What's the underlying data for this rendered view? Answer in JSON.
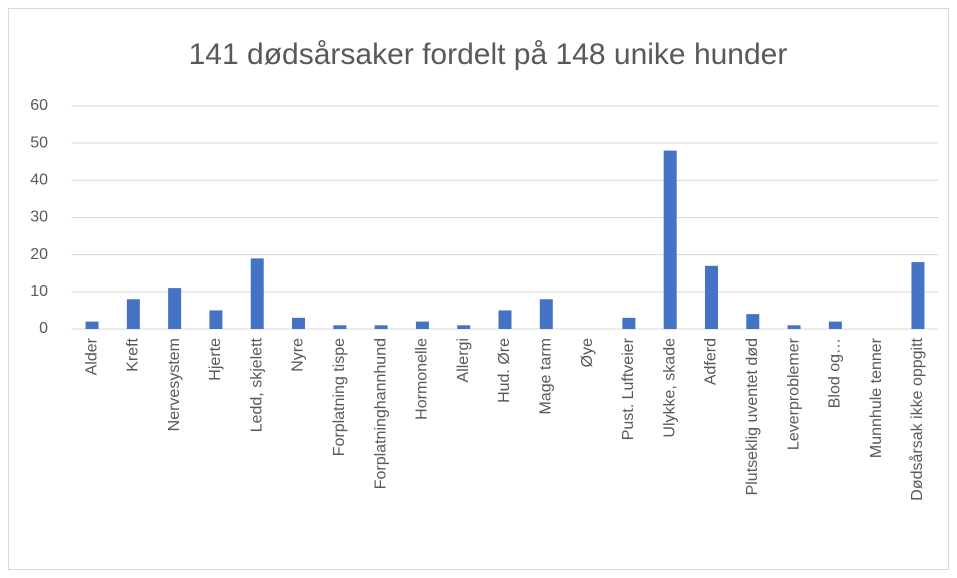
{
  "chart_data": {
    "type": "bar",
    "title": "141 dødsårsaker fordelt på 148 unike hunder",
    "categories": [
      "Alder",
      "Kreft",
      "Nervesystem",
      "Hjerte",
      "Ledd, skjelett",
      "Nyre",
      "Forplatning tispe",
      "Forplatninghannhund",
      "Hormonelle",
      "Allergi",
      "Hud. Øre",
      "Mage tarm",
      "Øye",
      "Pust. Luftveier",
      "Ulykke, skade",
      "Adferd",
      "Plutseklig uventet død",
      "Leverproblemer",
      "Blod og…",
      "Munnhule tenner",
      "Dødsårsak ikke oppgitt"
    ],
    "values": [
      2,
      8,
      11,
      5,
      19,
      3,
      1,
      1,
      2,
      1,
      5,
      8,
      0,
      3,
      48,
      17,
      4,
      1,
      2,
      0,
      18
    ],
    "color": "#4472c4",
    "ylim": [
      0,
      60
    ],
    "yticks": [
      0,
      10,
      20,
      30,
      40,
      50,
      60
    ],
    "grid": true
  }
}
